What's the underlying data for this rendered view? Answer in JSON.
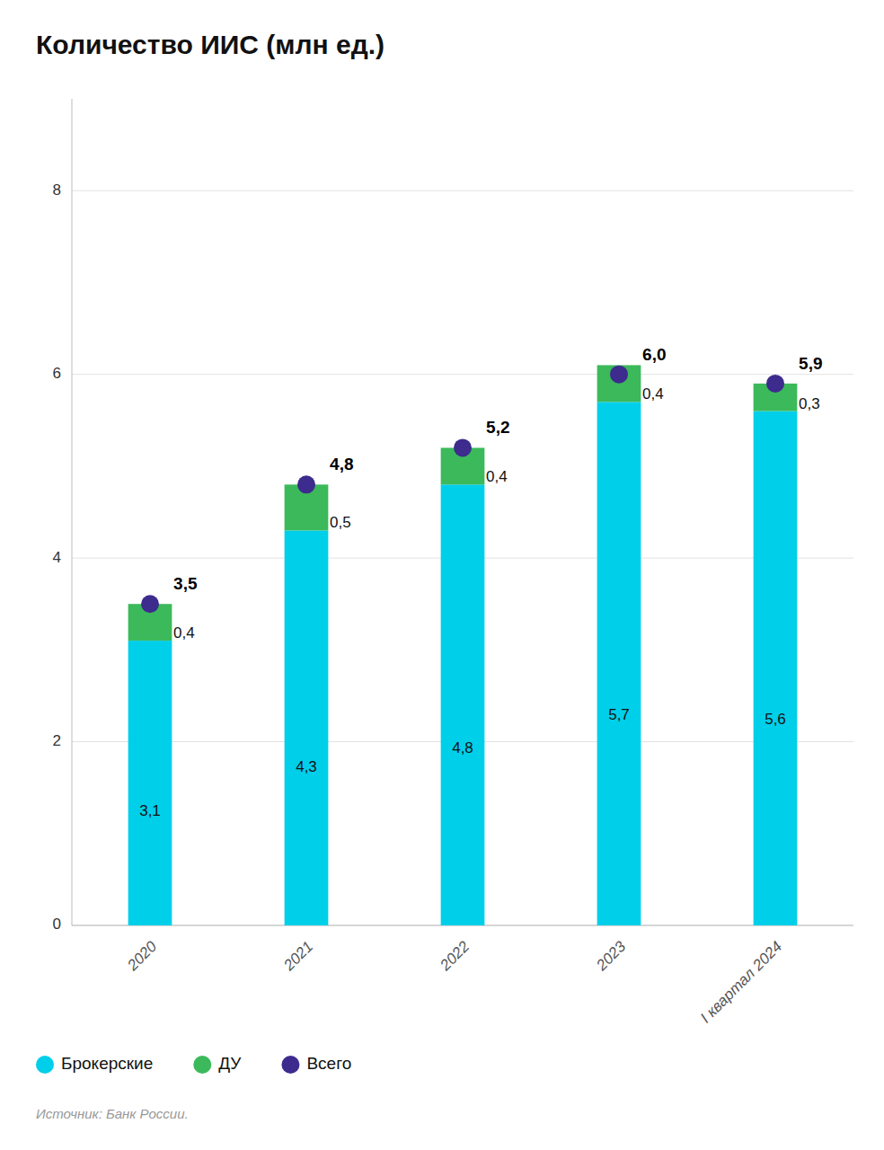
{
  "chart_data": {
    "type": "bar",
    "title": "Количество ИИС (млн ед.)",
    "categories": [
      "2020",
      "2021",
      "2022",
      "2023",
      "I квартал 2024"
    ],
    "stacked": true,
    "data_labels": true,
    "grid": true,
    "legend": "lower left",
    "ylim": [
      0,
      9.0
    ],
    "yticks": [
      0,
      2,
      4,
      6,
      8
    ],
    "series": [
      {
        "name": "Брокерские",
        "color": "#00CFEA",
        "values": [
          3.1,
          4.3,
          4.8,
          5.7,
          5.6
        ],
        "value_labels": [
          "3,1",
          "4,3",
          "4,8",
          "5,7",
          "5,6"
        ]
      },
      {
        "name": "ДУ",
        "color": "#3CB95A",
        "values": [
          0.4,
          0.5,
          0.4,
          0.4,
          0.3
        ],
        "value_labels": [
          "0,4",
          "0,5",
          "0,4",
          "0,4",
          "0,3"
        ]
      },
      {
        "name": "Всего",
        "type": "scatter",
        "marker": "circle",
        "color": "#3D2B8E",
        "values": [
          3.5,
          4.8,
          5.2,
          6.0,
          5.9
        ],
        "value_labels": [
          "3,5",
          "4,8",
          "5,2",
          "6,0",
          "5,9"
        ]
      }
    ],
    "annotations": [
      "Источник: Банк России."
    ]
  }
}
